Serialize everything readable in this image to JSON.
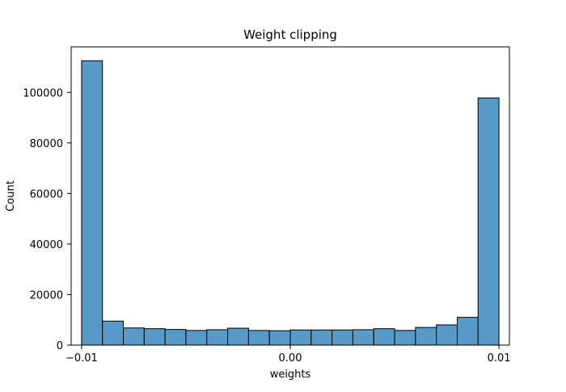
{
  "chart_data": {
    "type": "bar",
    "title": "Weight clipping",
    "xlabel": "weights",
    "ylabel": "Count",
    "xlim": [
      -0.0105,
      0.0105
    ],
    "ylim": [
      0,
      118000
    ],
    "bin_edges": [
      -0.01,
      -0.009,
      -0.008,
      -0.007,
      -0.006,
      -0.005,
      -0.004,
      -0.003,
      -0.002,
      -0.001,
      0.0,
      0.001,
      0.002,
      0.003,
      0.004,
      0.005,
      0.006,
      0.007,
      0.008,
      0.009,
      0.01
    ],
    "values": [
      112500,
      9500,
      6800,
      6500,
      6200,
      5800,
      6100,
      6700,
      5800,
      5700,
      6000,
      6000,
      6000,
      6100,
      6500,
      5800,
      7000,
      8000,
      11000,
      97800
    ],
    "x_ticks": [
      {
        "value": -0.01,
        "label": "−0.01"
      },
      {
        "value": 0.0,
        "label": "0.00"
      },
      {
        "value": 0.01,
        "label": "0.01"
      }
    ],
    "y_ticks": [
      {
        "value": 0,
        "label": "0"
      },
      {
        "value": 20000,
        "label": "20000"
      },
      {
        "value": 40000,
        "label": "40000"
      },
      {
        "value": 60000,
        "label": "60000"
      },
      {
        "value": 80000,
        "label": "80000"
      },
      {
        "value": 100000,
        "label": "100000"
      }
    ],
    "grid": false,
    "legend": "none",
    "colors": {
      "bar_fill": "#5799c7",
      "bar_edge": "#000000",
      "axes": "#000000",
      "background": "#ffffff"
    }
  }
}
